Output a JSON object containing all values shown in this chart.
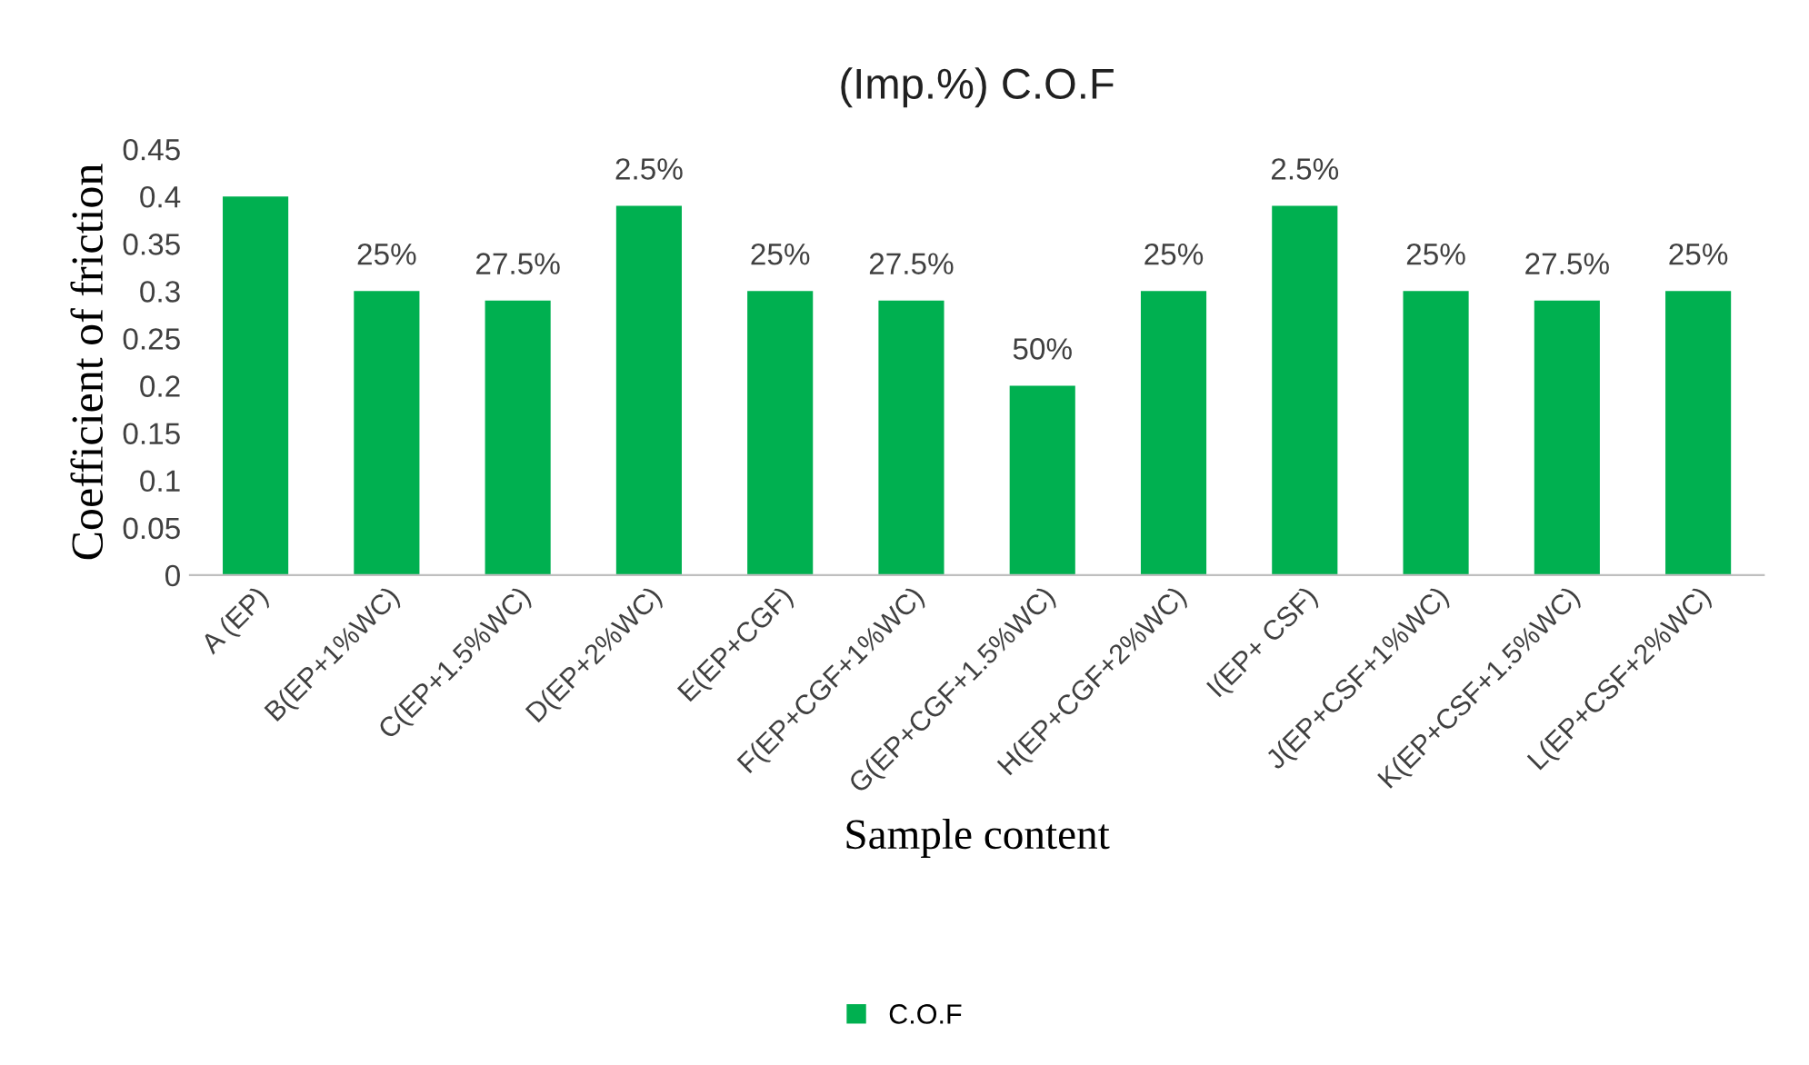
{
  "chart_data": {
    "type": "bar",
    "title": "(Imp.%) C.O.F",
    "xlabel": "Sample content",
    "ylabel": "Coefficient of friction",
    "categories": [
      "A (EP)",
      "B(EP+1%WC)",
      "C(EP+1.5%WC)",
      "D(EP+2%WC)",
      "E(EP+CGF)",
      "F(EP+CGF+1%WC)",
      "G(EP+CGF+1.5%WC)",
      "H(EP+CGF+2%WC)",
      "I(EP+ CSF)",
      "J(EP+CSF+1%WC)",
      "K(EP+CSF+1.5%WC)",
      "L(EP+CSF+2%WC)"
    ],
    "series": [
      {
        "name": "C.O.F",
        "color": "#00b050",
        "values": [
          0.4,
          0.3,
          0.29,
          0.39,
          0.3,
          0.29,
          0.2,
          0.3,
          0.39,
          0.3,
          0.29,
          0.3
        ]
      }
    ],
    "annotations": [
      {
        "text": "25%",
        "x": "B(EP+1%WC)",
        "y": 0.3
      },
      {
        "text": "27.5%",
        "x": "C(EP+1.5%WC)",
        "y": 0.29
      },
      {
        "text": "2.5%",
        "x": "D(EP+2%WC)",
        "y": 0.39
      },
      {
        "text": "25%",
        "x": "E(EP+CGF)",
        "y": 0.3
      },
      {
        "text": "27.5%",
        "x": "F(EP+CGF+1%WC)",
        "y": 0.29
      },
      {
        "text": "50%",
        "x": "G(EP+CGF+1.5%WC)",
        "y": 0.2
      },
      {
        "text": "25%",
        "x": "H(EP+CGF+2%WC)",
        "y": 0.3
      },
      {
        "text": "2.5%",
        "x": "I(EP+ CSF)",
        "y": 0.39
      },
      {
        "text": "25%",
        "x": "J(EP+CSF+1%WC)",
        "y": 0.3
      },
      {
        "text": "27.5%",
        "x": "K(EP+CSF+1.5%WC)",
        "y": 0.29
      },
      {
        "text": "25%",
        "x": "L(EP+CSF+2%WC)",
        "y": 0.3
      }
    ],
    "ylim": [
      0,
      0.45
    ],
    "yticks": [
      0,
      0.05,
      0.1,
      0.15,
      0.2,
      0.25,
      0.3,
      0.35,
      0.4,
      0.45
    ],
    "grid": false,
    "legend": "bottom"
  }
}
